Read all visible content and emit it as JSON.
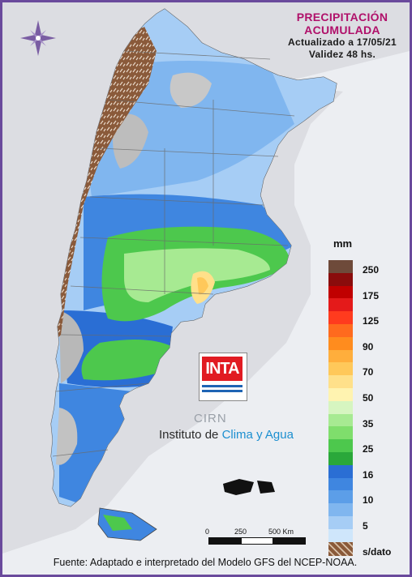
{
  "title": {
    "line1": "PRECIPITACIÓN",
    "line2": "ACUMULADA",
    "updated": "Actualizado a 17/05/21",
    "validity": "Validez 48 hs."
  },
  "legend": {
    "unit": "mm",
    "items": [
      {
        "label": "250",
        "color": "#6e4a3a"
      },
      {
        "label": "",
        "color": "#8a0c0c"
      },
      {
        "label": "175",
        "color": "#c00000"
      },
      {
        "label": "",
        "color": "#e41a1a"
      },
      {
        "label": "125",
        "color": "#ff3b1e"
      },
      {
        "label": "",
        "color": "#ff6a1e"
      },
      {
        "label": "90",
        "color": "#ff8c1e"
      },
      {
        "label": "",
        "color": "#ffae3c"
      },
      {
        "label": "70",
        "color": "#ffc85a"
      },
      {
        "label": "",
        "color": "#ffe08a"
      },
      {
        "label": "50",
        "color": "#fff3b0"
      },
      {
        "label": "",
        "color": "#d6f5c0"
      },
      {
        "label": "35",
        "color": "#a7ea92"
      },
      {
        "label": "",
        "color": "#7fde6c"
      },
      {
        "label": "25",
        "color": "#4dc84d"
      },
      {
        "label": "",
        "color": "#2aa83a"
      },
      {
        "label": "16",
        "color": "#2a6ed4"
      },
      {
        "label": "",
        "color": "#3f86e0"
      },
      {
        "label": "10",
        "color": "#5c9ee8"
      },
      {
        "label": "",
        "color": "#80b6ef"
      },
      {
        "label": "5",
        "color": "#a6cdf5"
      },
      {
        "label": "",
        "color": "#cfe6fb"
      },
      {
        "label": "s/dato",
        "color": "#9a6a4a"
      }
    ]
  },
  "logo": {
    "text": "INTA",
    "cirn": "CIRN"
  },
  "institute": {
    "prefix": "Instituto de ",
    "highlight": "Clima y Agua"
  },
  "scale": {
    "ticks": [
      "0",
      "250",
      "500 Km"
    ]
  },
  "source": "Fuente: Adaptado e interpretado del Modelo GFS del NCEP-NOAA."
}
